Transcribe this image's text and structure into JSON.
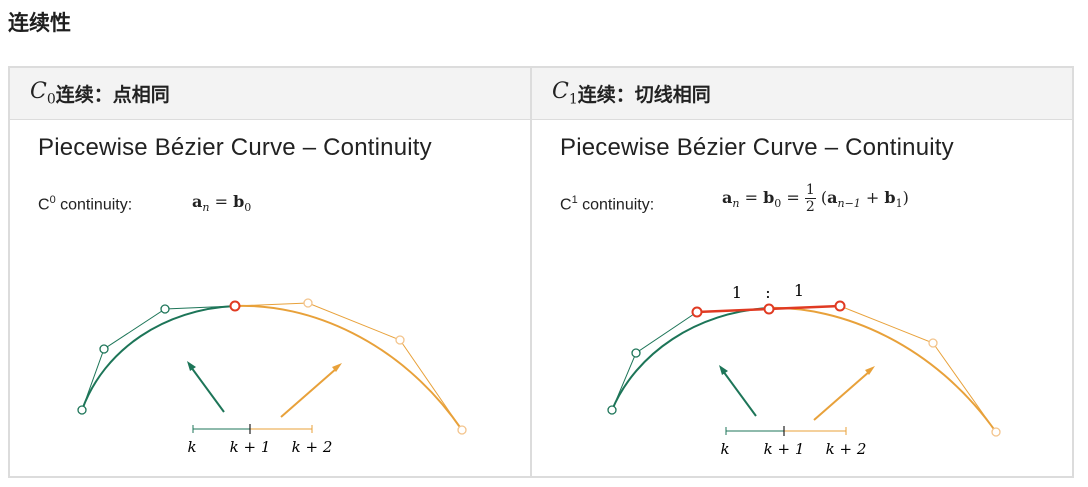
{
  "page_title": "连续性",
  "columns": [
    {
      "header": {
        "math_letter": "C",
        "math_sub": "0",
        "text": "连续：点相同"
      },
      "slide": {
        "title": "Piecewise Bézier Curve – Continuity",
        "label_prefix": "C",
        "label_sup": "0",
        "label_suffix": " continuity:",
        "formula": {
          "a": "a",
          "n": "n",
          "eq": "=",
          "b": "b",
          "zero": "0"
        },
        "axis_labels": [
          "k",
          "k + 1",
          "k + 2"
        ]
      }
    },
    {
      "header": {
        "math_letter": "C",
        "math_sub": "1",
        "text": "连续：切线相同"
      },
      "slide": {
        "title": "Piecewise Bézier Curve – Continuity",
        "label_prefix": "C",
        "label_sup": "1",
        "label_suffix": " continuity:",
        "formula": {
          "a": "a",
          "n": "n",
          "eq1": "=",
          "b": "b",
          "zero": "0",
          "eq2": "=",
          "num": "1",
          "den": "2",
          "open": "(",
          "a2": "a",
          "nm1": "n−1",
          "plus": "+",
          "b2": "b",
          "one": "1",
          "close": ")"
        },
        "ratio_labels": [
          "1",
          ":",
          "1"
        ],
        "axis_labels": [
          "k",
          "k + 1",
          "k + 2"
        ]
      }
    }
  ],
  "colors": {
    "green": "#1d7558",
    "orange": "#e8a13a",
    "red": "#e03a22",
    "light_orange": "#f3c48c"
  }
}
